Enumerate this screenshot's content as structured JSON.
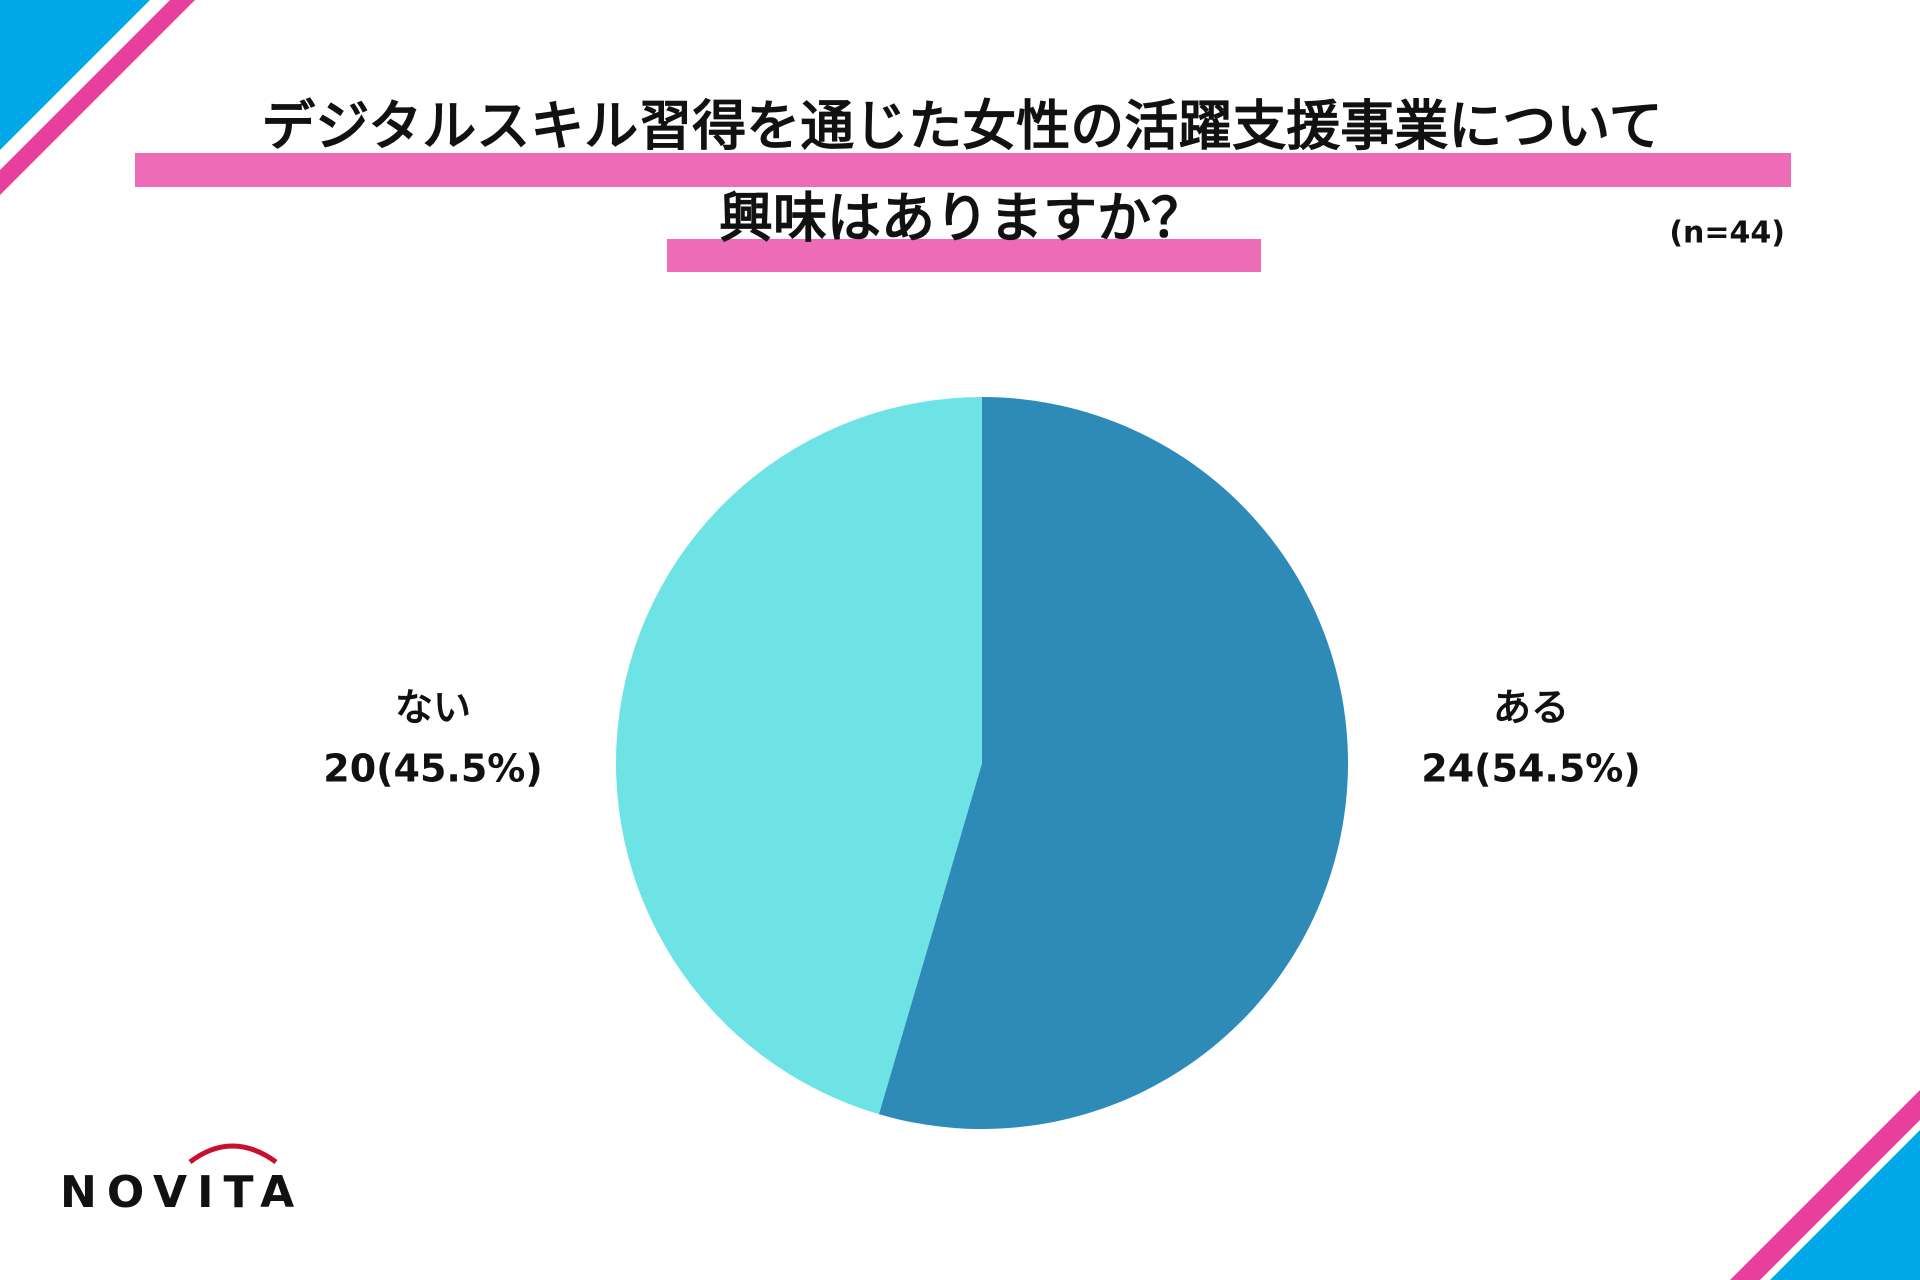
{
  "chart_data": {
    "type": "pie",
    "title": [
      "デジタルスキル習得を通じた女性の活躍支援事業について",
      "興味はありますか？"
    ],
    "subtitle": "(n=44)",
    "categories": [
      "ある",
      "ない"
    ],
    "values": [
      24,
      20
    ],
    "value_labels": [
      "24(54.5%)",
      "20(45.5%)"
    ],
    "colors": [
      "#2e8bb8",
      "#6ee3e6"
    ]
  },
  "brand": "NOVITA"
}
